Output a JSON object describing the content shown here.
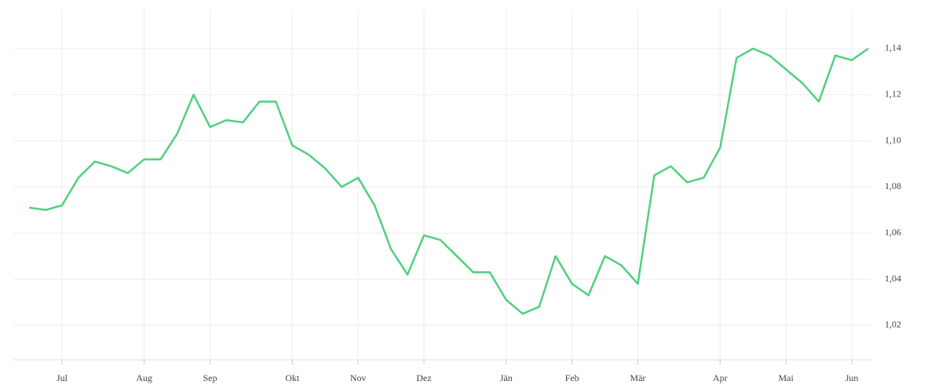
{
  "chart_data": {
    "type": "line",
    "categories": [
      null,
      null,
      "Jul",
      null,
      null,
      null,
      null,
      "Aug",
      null,
      null,
      null,
      "Sep",
      null,
      null,
      null,
      null,
      "Okt",
      null,
      null,
      null,
      "Nov",
      null,
      null,
      null,
      "Dez",
      null,
      null,
      null,
      null,
      "Jän",
      null,
      null,
      null,
      "Feb",
      null,
      null,
      null,
      "Mär",
      null,
      null,
      null,
      null,
      "Apr",
      null,
      null,
      null,
      "Mai",
      null,
      null,
      null,
      "Jun",
      null
    ],
    "series": [
      {
        "color": "#4fd17f",
        "values": [
          1.071,
          1.07,
          1.072,
          1.084,
          1.091,
          1.089,
          1.086,
          1.092,
          1.092,
          1.103,
          1.12,
          1.106,
          1.109,
          1.108,
          1.117,
          1.117,
          1.098,
          1.094,
          1.088,
          1.08,
          1.084,
          1.072,
          1.053,
          1.042,
          1.059,
          1.057,
          1.05,
          1.043,
          1.043,
          1.031,
          1.025,
          1.028,
          1.05,
          1.038,
          1.033,
          1.05,
          1.046,
          1.038,
          1.085,
          1.089,
          1.082,
          1.084,
          1.097,
          1.136,
          1.14,
          1.137,
          1.131,
          1.125,
          1.117,
          1.137,
          1.135,
          1.14
        ]
      }
    ],
    "ylim": [
      1.005,
      1.157
    ],
    "yticks": [
      {
        "value": 1.02,
        "label": "1,02"
      },
      {
        "value": 1.04,
        "label": "1,04"
      },
      {
        "value": 1.06,
        "label": "1,06"
      },
      {
        "value": 1.08,
        "label": "1,08"
      },
      {
        "value": 1.1,
        "label": "1,10"
      },
      {
        "value": 1.12,
        "label": "1,12"
      },
      {
        "value": 1.14,
        "label": "1,14"
      }
    ],
    "grid": true
  }
}
